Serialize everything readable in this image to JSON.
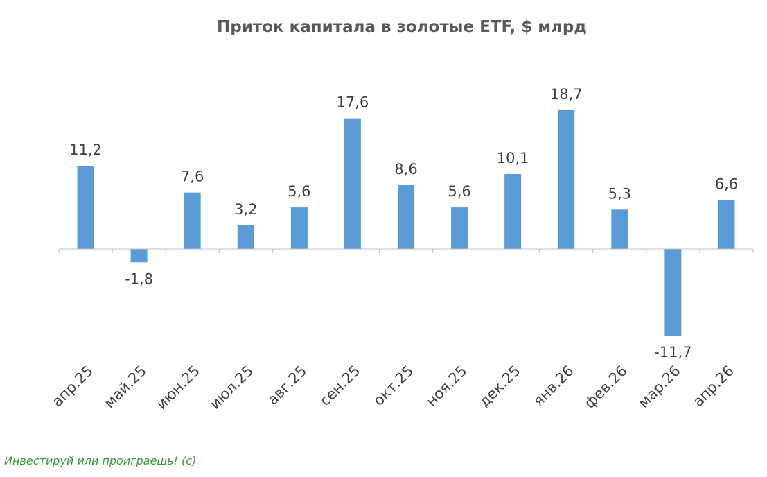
{
  "chart_data": {
    "type": "bar",
    "title": "Приток капитала в золотые ETF, $ млрд",
    "categories": [
      "апр.25",
      "май.25",
      "июн.25",
      "июл.25",
      "авг.25",
      "сен.25",
      "окт.25",
      "ноя.25",
      "дек.25",
      "янв.26",
      "фев.26",
      "мар.26",
      "апр.26"
    ],
    "values": [
      11.2,
      -1.8,
      7.6,
      3.2,
      5.6,
      17.6,
      8.6,
      5.6,
      10.1,
      18.7,
      5.3,
      -11.7,
      6.6
    ],
    "value_labels": [
      "11,2",
      "-1,8",
      "7,6",
      "3,2",
      "5,6",
      "17,6",
      "8,6",
      "5,6",
      "10,1",
      "18,7",
      "5,3",
      "-11,7",
      "6,6"
    ],
    "xlabel": "",
    "ylabel": "",
    "ylim": [
      -20,
      30
    ],
    "grid": false,
    "legend": "none",
    "bar_color": "#5b9bd5",
    "axis_color": "#bfbfbf"
  },
  "watermark": "Инвестируй или проиграешь! (с)"
}
